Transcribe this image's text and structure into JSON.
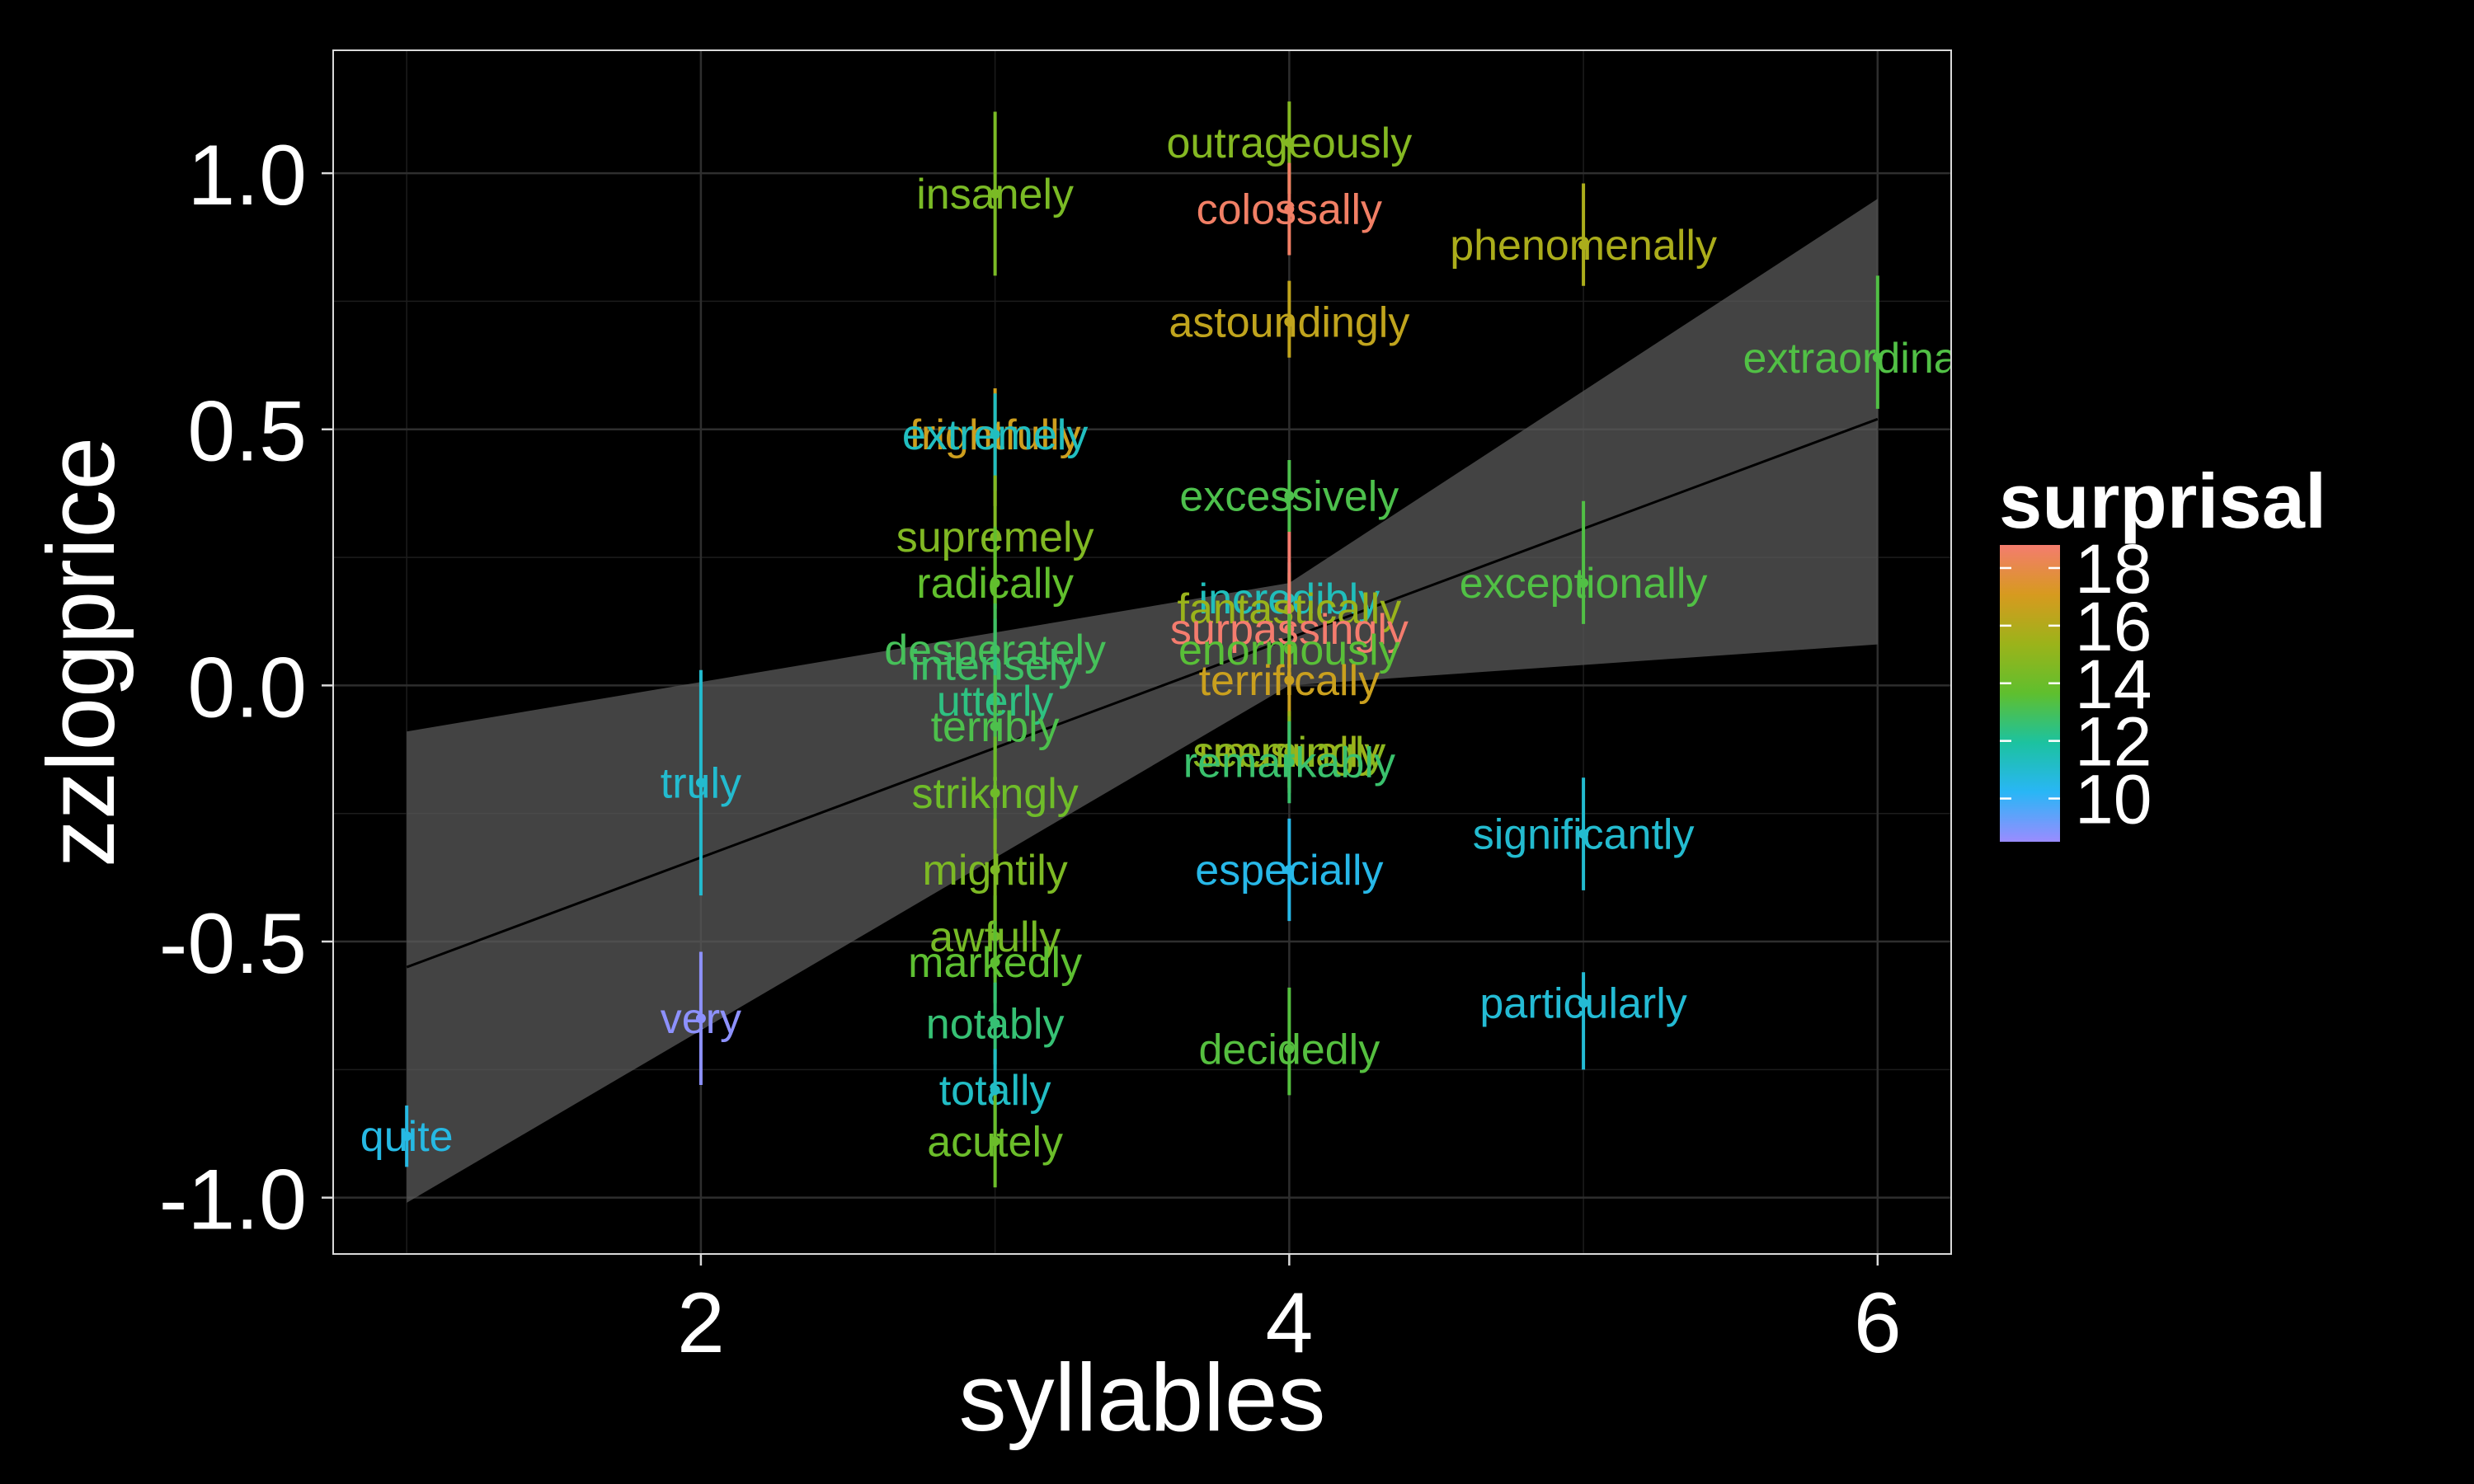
{
  "chart_data": {
    "type": "scatter",
    "title": "",
    "xlabel": "syllables",
    "ylabel": "zzlogprice",
    "xlim": [
      0.75,
      6.25
    ],
    "ylim": [
      -1.11,
      1.24
    ],
    "x_ticks": [
      2,
      4,
      6
    ],
    "y_ticks": [
      -1.0,
      -0.5,
      0.0,
      0.5,
      1.0
    ],
    "grid": true,
    "background": "#000000",
    "legend": {
      "title": "surprisal",
      "placement": "right",
      "range": [
        8.5,
        18.8
      ],
      "ticks": [
        10,
        12,
        14,
        16,
        18
      ],
      "colors": [
        "#9a8cff",
        "#29b6f6",
        "#1cc2a0",
        "#5fbf2e",
        "#9cb31a",
        "#d79a1f",
        "#f47c6e"
      ]
    },
    "trend": {
      "line": [
        [
          1,
          -0.55
        ],
        [
          6,
          0.52
        ]
      ],
      "ribbon_low": [
        [
          1,
          -1.01
        ],
        [
          4,
          0.0
        ],
        [
          6,
          0.08
        ]
      ],
      "ribbon_high": [
        [
          1,
          -0.09
        ],
        [
          4,
          0.2
        ],
        [
          6,
          0.95
        ]
      ],
      "color": "#000000",
      "ribbon_color": "#5a5a5a"
    },
    "points": [
      {
        "label": "quite",
        "x": 1,
        "y": -0.88,
        "lo": -0.94,
        "hi": -0.82,
        "surprisal": 10.6
      },
      {
        "label": "truly",
        "x": 2,
        "y": -0.19,
        "lo": -0.41,
        "hi": 0.03,
        "surprisal": 11.0
      },
      {
        "label": "very",
        "x": 2,
        "y": -0.65,
        "lo": -0.78,
        "hi": -0.52,
        "surprisal": 8.7
      },
      {
        "label": "insanely",
        "x": 3,
        "y": 0.96,
        "lo": 0.8,
        "hi": 1.12,
        "surprisal": 14.4
      },
      {
        "label": "frightfully",
        "x": 3,
        "y": 0.49,
        "lo": 0.35,
        "hi": 0.58,
        "surprisal": 16.8
      },
      {
        "label": "extremely",
        "x": 3,
        "y": 0.49,
        "lo": 0.38,
        "hi": 0.57,
        "surprisal": 11.3
      },
      {
        "label": "supremely",
        "x": 3,
        "y": 0.29,
        "lo": 0.15,
        "hi": 0.41,
        "surprisal": 14.6
      },
      {
        "label": "radically",
        "x": 3,
        "y": 0.2,
        "lo": 0.09,
        "hi": 0.31,
        "surprisal": 13.7
      },
      {
        "label": "desperately",
        "x": 3,
        "y": 0.07,
        "lo": -0.04,
        "hi": 0.16,
        "surprisal": 13.0
      },
      {
        "label": "intensely",
        "x": 3,
        "y": 0.04,
        "lo": -0.05,
        "hi": 0.13,
        "surprisal": 12.8
      },
      {
        "label": "utterly",
        "x": 3,
        "y": -0.03,
        "lo": -0.13,
        "hi": 0.06,
        "surprisal": 12.4
      },
      {
        "label": "terribly",
        "x": 3,
        "y": -0.08,
        "lo": -0.18,
        "hi": 0.02,
        "surprisal": 13.2
      },
      {
        "label": "strikingly",
        "x": 3,
        "y": -0.21,
        "lo": -0.32,
        "hi": -0.1,
        "surprisal": 14.1
      },
      {
        "label": "mightily",
        "x": 3,
        "y": -0.36,
        "lo": -0.47,
        "hi": -0.26,
        "surprisal": 14.5
      },
      {
        "label": "awfully",
        "x": 3,
        "y": -0.49,
        "lo": -0.57,
        "hi": -0.41,
        "surprisal": 14.3
      },
      {
        "label": "markedly",
        "x": 3,
        "y": -0.54,
        "lo": -0.62,
        "hi": -0.46,
        "surprisal": 13.6
      },
      {
        "label": "notably",
        "x": 3,
        "y": -0.66,
        "lo": -0.74,
        "hi": -0.58,
        "surprisal": 12.6
      },
      {
        "label": "totally",
        "x": 3,
        "y": -0.79,
        "lo": -0.87,
        "hi": -0.71,
        "surprisal": 11.2
      },
      {
        "label": "acutely",
        "x": 3,
        "y": -0.89,
        "lo": -0.98,
        "hi": -0.8,
        "surprisal": 14.0
      },
      {
        "label": "outrageously",
        "x": 4,
        "y": 1.06,
        "lo": 0.96,
        "hi": 1.14,
        "surprisal": 14.7
      },
      {
        "label": "colossally",
        "x": 4,
        "y": 0.93,
        "lo": 0.84,
        "hi": 1.02,
        "surprisal": 18.6
      },
      {
        "label": "astoundingly",
        "x": 4,
        "y": 0.71,
        "lo": 0.64,
        "hi": 0.79,
        "surprisal": 16.4
      },
      {
        "label": "excessively",
        "x": 4,
        "y": 0.37,
        "lo": 0.3,
        "hi": 0.44,
        "surprisal": 13.2
      },
      {
        "label": "incredibly",
        "x": 4,
        "y": 0.17,
        "lo": 0.1,
        "hi": 0.24,
        "surprisal": 11.4
      },
      {
        "label": "fantastically",
        "x": 4,
        "y": 0.15,
        "lo": 0.07,
        "hi": 0.22,
        "surprisal": 15.3
      },
      {
        "label": "surpassingly",
        "x": 4,
        "y": 0.11,
        "lo": 0.02,
        "hi": 0.3,
        "surprisal": 18.8
      },
      {
        "label": "enormously",
        "x": 4,
        "y": 0.07,
        "lo": 0.0,
        "hi": 0.14,
        "surprisal": 13.5
      },
      {
        "label": "terrifically",
        "x": 4,
        "y": 0.01,
        "lo": -0.06,
        "hi": 0.08,
        "surprisal": 16.7
      },
      {
        "label": "unusually",
        "x": 4,
        "y": -0.13,
        "lo": -0.21,
        "hi": -0.05,
        "surprisal": 15.4
      },
      {
        "label": "seemingly",
        "x": 4,
        "y": -0.13,
        "lo": -0.2,
        "hi": -0.06,
        "surprisal": 14.9
      },
      {
        "label": "remarkably",
        "x": 4,
        "y": -0.15,
        "lo": -0.23,
        "hi": -0.07,
        "surprisal": 12.7
      },
      {
        "label": "especially",
        "x": 4,
        "y": -0.36,
        "lo": -0.46,
        "hi": -0.26,
        "surprisal": 10.5
      },
      {
        "label": "decidedly",
        "x": 4,
        "y": -0.71,
        "lo": -0.8,
        "hi": -0.59,
        "surprisal": 13.4
      },
      {
        "label": "phenomenally",
        "x": 5,
        "y": 0.86,
        "lo": 0.78,
        "hi": 0.98,
        "surprisal": 15.8
      },
      {
        "label": "exceptionally",
        "x": 5,
        "y": 0.2,
        "lo": 0.12,
        "hi": 0.36,
        "surprisal": 13.3
      },
      {
        "label": "significantly",
        "x": 5,
        "y": -0.29,
        "lo": -0.4,
        "hi": -0.18,
        "surprisal": 11.0
      },
      {
        "label": "particularly",
        "x": 5,
        "y": -0.62,
        "lo": -0.75,
        "hi": -0.56,
        "surprisal": 10.9
      },
      {
        "label": "extraordinarily",
        "x": 6,
        "y": 0.64,
        "lo": 0.54,
        "hi": 0.8,
        "surprisal": 13.3
      }
    ]
  }
}
